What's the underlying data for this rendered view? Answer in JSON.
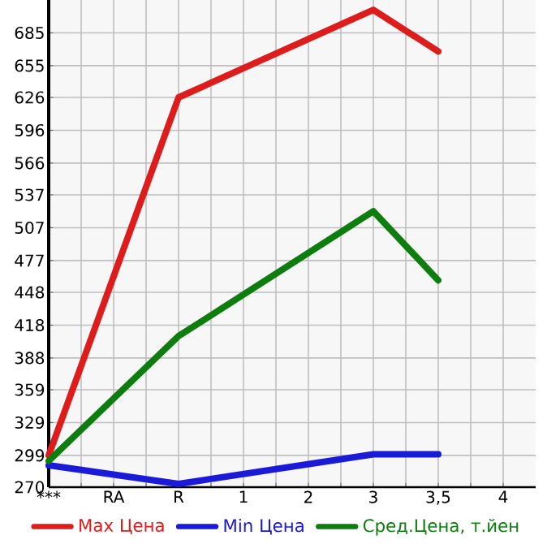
{
  "chart_data": {
    "type": "line",
    "categories": [
      "***",
      "RA",
      "R",
      "1",
      "2",
      "3",
      "3,5",
      "4"
    ],
    "series": [
      {
        "name": "Max Цена",
        "color": "#dd1c1c",
        "values": [
          299,
          null,
          626,
          null,
          null,
          706,
          668,
          null
        ]
      },
      {
        "name": "Min Цена",
        "color": "#1a1ad8",
        "values": [
          290,
          null,
          273,
          null,
          null,
          300,
          300,
          null
        ]
      },
      {
        "name": "Сред.Цена, т.йен",
        "color": "#0d7d0d",
        "values": [
          294,
          null,
          408,
          null,
          null,
          522,
          459,
          null
        ]
      }
    ],
    "ylim": [
      270,
      715
    ],
    "yticks": [
      270,
      299,
      329,
      359,
      388,
      418,
      448,
      477,
      507,
      537,
      566,
      596,
      626,
      655,
      685
    ],
    "grid": true,
    "legend": "bottom",
    "marker": "none",
    "line_style": "solid"
  }
}
